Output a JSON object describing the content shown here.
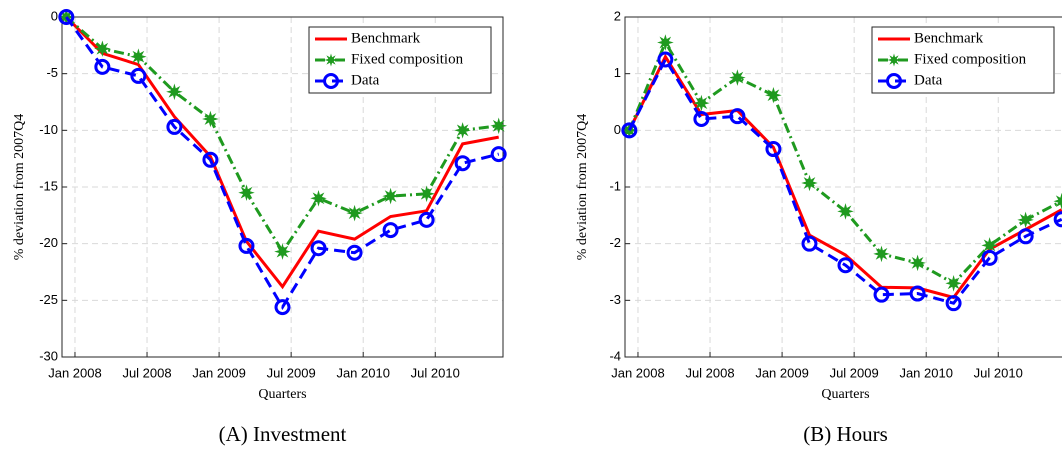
{
  "chart_data": [
    {
      "type": "line",
      "title": "(A) Investment",
      "xlabel": "Quarters",
      "ylabel": "% deviation from 2007Q4",
      "x": [
        2007.94,
        2008.19,
        2008.44,
        2008.69,
        2008.94,
        2009.19,
        2009.44,
        2009.69,
        2009.94,
        2010.19,
        2010.44,
        2010.69,
        2010.94
      ],
      "series": [
        {
          "name": "Benchmark",
          "color": "#ff0000",
          "values": [
            0,
            -3.2,
            -4.2,
            -8.8,
            -12.3,
            -19.8,
            -23.8,
            -18.9,
            -19.6,
            -17.6,
            -17.1,
            -11.2,
            -10.6
          ]
        },
        {
          "name": "Fixed composition",
          "color": "#1f9a1f",
          "values": [
            0,
            -2.8,
            -3.5,
            -6.6,
            -9.0,
            -15.5,
            -20.7,
            -16.0,
            -17.3,
            -15.8,
            -15.6,
            -10.0,
            -9.6
          ]
        },
        {
          "name": "Data",
          "color": "#0000ff",
          "values": [
            0,
            -4.4,
            -5.2,
            -9.7,
            -12.6,
            -20.2,
            -25.6,
            -20.4,
            -20.8,
            -18.8,
            -17.9,
            -12.9,
            -12.1
          ]
        }
      ],
      "xlim": [
        2007.91,
        2010.97
      ],
      "xticks": [
        {
          "value": 2008,
          "label": "Jan 2008"
        },
        {
          "value": 2008.5,
          "label": "Jul 2008"
        },
        {
          "value": 2009,
          "label": "Jan 2009"
        },
        {
          "value": 2009.5,
          "label": "Jul 2009"
        },
        {
          "value": 2010,
          "label": "Jan 2010"
        },
        {
          "value": 2010.5,
          "label": "Jul 2010"
        }
      ],
      "ylim": [
        -30,
        0
      ],
      "yticks": [
        -30,
        -25,
        -20,
        -15,
        -10,
        -5,
        0
      ],
      "grid": true,
      "legend": "upper right"
    },
    {
      "type": "line",
      "title": "(B) Hours",
      "xlabel": "Quarters",
      "ylabel": "% deviation from 2007Q4",
      "x": [
        2007.94,
        2008.19,
        2008.44,
        2008.69,
        2008.94,
        2009.19,
        2009.44,
        2009.69,
        2009.94,
        2010.19,
        2010.44,
        2010.69,
        2010.94
      ],
      "series": [
        {
          "name": "Benchmark",
          "color": "#ff0000",
          "values": [
            0,
            1.3,
            0.28,
            0.35,
            -0.3,
            -1.85,
            -2.2,
            -2.77,
            -2.78,
            -2.95,
            -2.1,
            -1.75,
            -1.4
          ]
        },
        {
          "name": "Fixed composition",
          "color": "#1f9a1f",
          "values": [
            0,
            1.55,
            0.48,
            0.93,
            0.62,
            -0.93,
            -1.43,
            -2.18,
            -2.34,
            -2.7,
            -2.03,
            -1.58,
            -1.25
          ]
        },
        {
          "name": "Data",
          "color": "#0000ff",
          "values": [
            0,
            1.25,
            0.2,
            0.25,
            -0.33,
            -2.0,
            -2.38,
            -2.9,
            -2.88,
            -3.05,
            -2.25,
            -1.87,
            -1.57
          ]
        }
      ],
      "xlim": [
        2007.91,
        2010.97
      ],
      "xticks": [
        {
          "value": 2008,
          "label": "Jan 2008"
        },
        {
          "value": 2008.5,
          "label": "Jul 2008"
        },
        {
          "value": 2009,
          "label": "Jan 2009"
        },
        {
          "value": 2009.5,
          "label": "Jul 2009"
        },
        {
          "value": 2010,
          "label": "Jan 2010"
        },
        {
          "value": 2010.5,
          "label": "Jul 2010"
        }
      ],
      "ylim": [
        -4,
        2
      ],
      "yticks": [
        -4,
        -3,
        -2,
        -1,
        0,
        1,
        2
      ],
      "grid": true,
      "legend": "upper right"
    }
  ]
}
